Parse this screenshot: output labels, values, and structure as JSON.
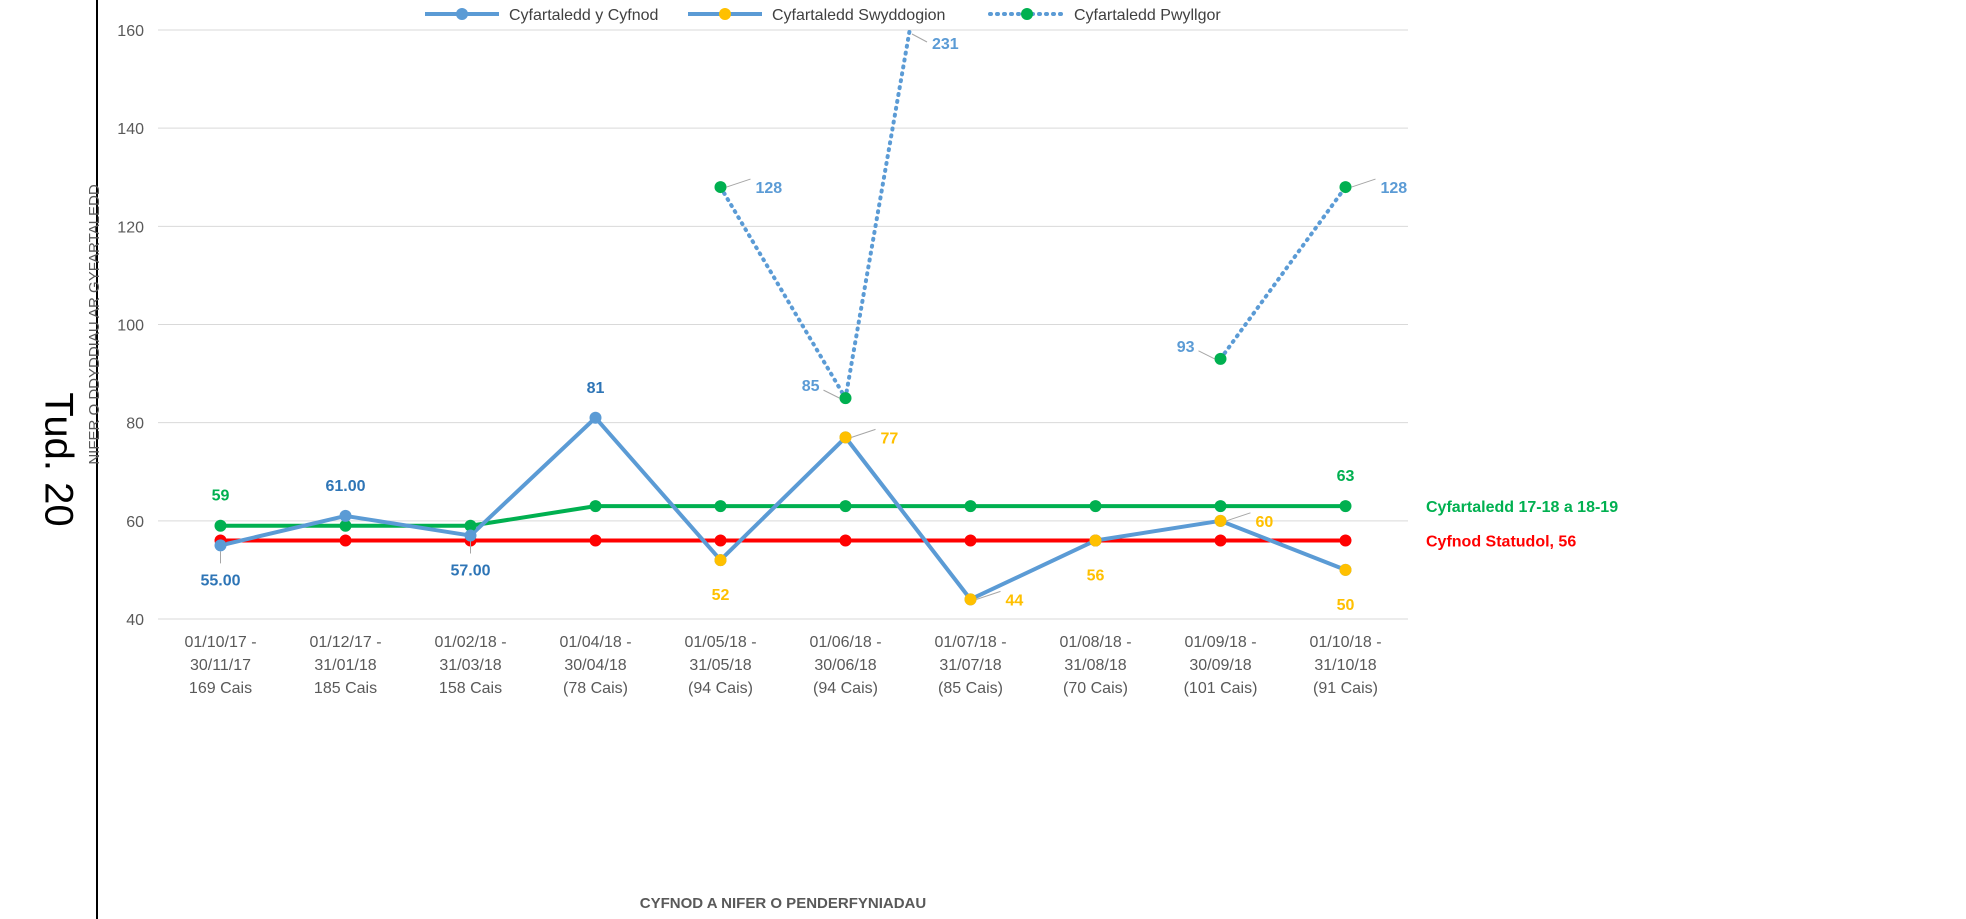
{
  "page_label": "Tud. 20",
  "colors": {
    "period": "#5B9BD5",
    "officer": "#FFC000",
    "committee": "#00B050",
    "statutory": "#FF0000",
    "average": "#00B050",
    "grid": "#D9D9D9",
    "axis_text": "#595959"
  },
  "chart_data": {
    "type": "line",
    "title": "",
    "xlabel": "CYFNOD A NIFER O PENDERFYNIADAU",
    "ylabel": "NIFER O DDYDDIAU AR GYFARTALEDD",
    "ylim": [
      40,
      160
    ],
    "yticks": [
      40,
      60,
      80,
      100,
      120,
      140,
      160
    ],
    "grid": true,
    "legend_position": "top",
    "categories": [
      [
        "01/10/17 -",
        "30/11/17",
        "169 Cais"
      ],
      [
        "01/12/17 -",
        "31/01/18",
        "185 Cais"
      ],
      [
        "01/02/18 -",
        "31/03/18",
        "158 Cais"
      ],
      [
        "01/04/18 -",
        "30/04/18",
        "(78 Cais)"
      ],
      [
        "01/05/18 -",
        "31/05/18",
        "(94 Cais)"
      ],
      [
        "01/06/18 -",
        "30/06/18",
        "(94 Cais)"
      ],
      [
        "01/07/18 -",
        "31/07/18",
        "(85 Cais)"
      ],
      [
        "01/08/18 -",
        "31/08/18",
        "(70 Cais)"
      ],
      [
        "01/09/18 -",
        "30/09/18",
        "(101 Cais)"
      ],
      [
        "01/10/18 -",
        "31/10/18",
        "(91 Cais)"
      ]
    ],
    "series": [
      {
        "name": "Cyfartaledd y Cyfnod",
        "legend": true,
        "values": [
          55,
          61,
          57,
          81,
          52,
          77,
          44,
          56,
          60,
          50
        ]
      },
      {
        "name": "Cyfartaledd Swyddogion",
        "legend": true,
        "values": [
          null,
          null,
          null,
          null,
          52,
          77,
          44,
          56,
          60,
          50
        ]
      },
      {
        "name": "Cyfartaledd Pwyllgor",
        "legend": true,
        "values": [
          null,
          null,
          null,
          null,
          128,
          85,
          231,
          null,
          93,
          128
        ]
      },
      {
        "name": "Cyfartaledd 17-18 a 18-19",
        "legend": false,
        "values": [
          59,
          59,
          59,
          63,
          63,
          63,
          63,
          63,
          63,
          63
        ]
      },
      {
        "name": "Cyfnod Statudol, 56",
        "legend": false,
        "values": [
          56,
          56,
          56,
          56,
          56,
          56,
          56,
          56,
          56,
          56
        ]
      }
    ],
    "data_labels": [
      {
        "series": "Cyfartaledd y Cyfnod",
        "index": 0,
        "text": "55.00",
        "color": "#2E75B6",
        "pos": "below"
      },
      {
        "series": "Cyfartaledd y Cyfnod",
        "index": 1,
        "text": "61.00",
        "color": "#2E75B6",
        "pos": "above"
      },
      {
        "series": "Cyfartaledd y Cyfnod",
        "index": 2,
        "text": "57.00",
        "color": "#2E75B6",
        "pos": "below"
      },
      {
        "series": "Cyfartaledd y Cyfnod",
        "index": 3,
        "text": "81",
        "color": "#2E75B6",
        "pos": "above"
      },
      {
        "series": "Cyfartaledd Swyddogion",
        "index": 4,
        "text": "52",
        "color": "#FFC000",
        "pos": "below"
      },
      {
        "series": "Cyfartaledd Swyddogion",
        "index": 5,
        "text": "77",
        "color": "#FFC000",
        "pos": "right"
      },
      {
        "series": "Cyfartaledd Swyddogion",
        "index": 6,
        "text": "44",
        "color": "#FFC000",
        "pos": "right"
      },
      {
        "series": "Cyfartaledd Swyddogion",
        "index": 7,
        "text": "56",
        "color": "#FFC000",
        "pos": "below"
      },
      {
        "series": "Cyfartaledd Swyddogion",
        "index": 8,
        "text": "60",
        "color": "#FFC000",
        "pos": "right"
      },
      {
        "series": "Cyfartaledd Swyddogion",
        "index": 9,
        "text": "50",
        "color": "#FFC000",
        "pos": "below"
      },
      {
        "series": "Cyfartaledd Pwyllgor",
        "index": 4,
        "text": "128",
        "color": "#5B9BD5",
        "pos": "right"
      },
      {
        "series": "Cyfartaledd Pwyllgor",
        "index": 5,
        "text": "85",
        "color": "#5B9BD5",
        "pos": "left"
      },
      {
        "series": "Cyfartaledd Pwyllgor",
        "index": 6,
        "text": "231",
        "color": "#5B9BD5",
        "pos": "clipped"
      },
      {
        "series": "Cyfartaledd Pwyllgor",
        "index": 8,
        "text": "93",
        "color": "#5B9BD5",
        "pos": "left"
      },
      {
        "series": "Cyfartaledd Pwyllgor",
        "index": 9,
        "text": "128",
        "color": "#5B9BD5",
        "pos": "right"
      },
      {
        "series": "Cyfartaledd 17-18 a 18-19",
        "index": 0,
        "text": "59",
        "color": "#00B050",
        "pos": "above"
      },
      {
        "series": "Cyfartaledd 17-18 a 18-19",
        "index": 9,
        "text": "63",
        "color": "#00B050",
        "pos": "above"
      }
    ],
    "end_labels": [
      {
        "series": "Cyfartaledd 17-18 a 18-19",
        "text": "Cyfartaledd 17-18 a 18-19",
        "color": "#00B050"
      },
      {
        "series": "Cyfnod Statudol, 56",
        "text": "Cyfnod Statudol, 56",
        "color": "#FF0000"
      }
    ]
  }
}
